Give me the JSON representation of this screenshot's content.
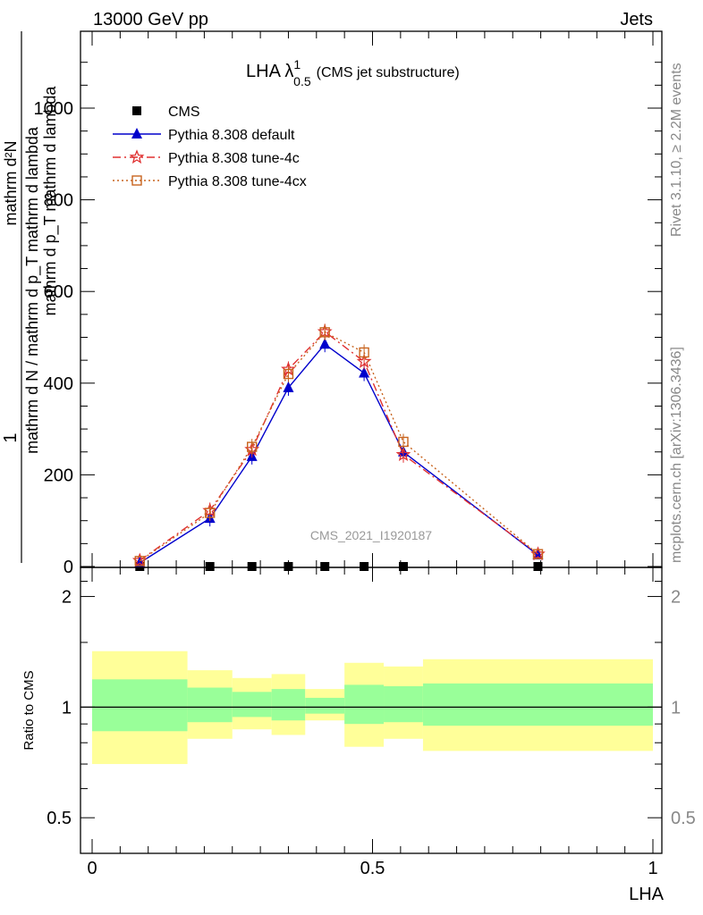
{
  "header": {
    "left": "13000 GeV pp",
    "right": "Jets"
  },
  "side_labels": {
    "top": "Rivet 3.1.10, ≥ 2.2M events",
    "bottom": "mcplots.cern.ch [arXiv:1306.3436]"
  },
  "chart_data": [
    {
      "type": "line",
      "title": "LHA λ",
      "title_sup": "1",
      "title_sub": "0.5",
      "subtitle": "(CMS jet substructure)",
      "watermark": "CMS_2021_I1920187",
      "ylabel_num": "1",
      "ylabel_den": "mathrm d N / mathrm d p_T mathrm d lambda",
      "ylabel_frac_num": "mathrm d²N",
      "ylabel_frac_den": "mathrm d p_T mathrm d lambda",
      "ylim": [
        0,
        1000
      ],
      "yticks": [
        0,
        200,
        400,
        600,
        800,
        1000
      ],
      "ytick_labels": [
        "0",
        "200",
        "400",
        "600",
        "800",
        "1000"
      ],
      "xlim": [
        0,
        1
      ],
      "legend_position": "top-left",
      "series": [
        {
          "name": "CMS",
          "color": "#000000",
          "marker": "square",
          "x": [
            0.085,
            0.21,
            0.285,
            0.35,
            0.415,
            0.485,
            0.555,
            0.795
          ],
          "y": [
            0,
            0,
            0,
            0,
            0,
            0,
            0,
            0
          ]
        },
        {
          "name": "Pythia 8.308 default",
          "color": "#0000cc",
          "marker": "triangle",
          "dash": "",
          "x": [
            0.085,
            0.21,
            0.285,
            0.35,
            0.415,
            0.485,
            0.555,
            0.795
          ],
          "y": [
            8,
            105,
            240,
            390,
            485,
            422,
            250,
            25
          ]
        },
        {
          "name": "Pythia 8.308 tune-4c",
          "color": "#e03030",
          "marker": "star",
          "dash": "9,4,2,4",
          "x": [
            0.085,
            0.21,
            0.285,
            0.35,
            0.415,
            0.485,
            0.555,
            0.795
          ],
          "y": [
            13,
            122,
            255,
            430,
            512,
            447,
            244,
            27
          ]
        },
        {
          "name": "Pythia 8.308 tune-4cx",
          "color": "#c8641e",
          "marker": "open-square",
          "dash": "2,3",
          "x": [
            0.085,
            0.21,
            0.285,
            0.35,
            0.415,
            0.485,
            0.555,
            0.795
          ],
          "y": [
            12,
            117,
            261,
            420,
            511,
            467,
            272,
            27
          ]
        }
      ]
    },
    {
      "type": "area",
      "ylabel": "Ratio to CMS",
      "xlabel": "LHA",
      "ylim": [
        0.4,
        2.4
      ],
      "log_scale_y": true,
      "yticks": [
        0.5,
        1,
        2
      ],
      "ytick_labels": [
        "0.5",
        "1",
        "2"
      ],
      "xlim": [
        0,
        1
      ],
      "xticks": [
        0,
        0.5,
        1
      ],
      "xtick_labels": [
        "0",
        "0.5",
        "1"
      ],
      "reference_line": 1,
      "inner_band_color": "#99ff99",
      "outer_band_color": "#ffff99",
      "bands": [
        {
          "x_low": 0.0,
          "x_high": 0.17,
          "inner": [
            0.86,
            1.19
          ],
          "outer": [
            0.7,
            1.42
          ]
        },
        {
          "x_low": 0.17,
          "x_high": 0.25,
          "inner": [
            0.91,
            1.13
          ],
          "outer": [
            0.82,
            1.26
          ]
        },
        {
          "x_low": 0.25,
          "x_high": 0.32,
          "inner": [
            0.94,
            1.1
          ],
          "outer": [
            0.87,
            1.2
          ]
        },
        {
          "x_low": 0.32,
          "x_high": 0.38,
          "inner": [
            0.92,
            1.12
          ],
          "outer": [
            0.84,
            1.23
          ]
        },
        {
          "x_low": 0.38,
          "x_high": 0.45,
          "inner": [
            0.96,
            1.06
          ],
          "outer": [
            0.92,
            1.12
          ]
        },
        {
          "x_low": 0.45,
          "x_high": 0.52,
          "inner": [
            0.9,
            1.15
          ],
          "outer": [
            0.78,
            1.32
          ]
        },
        {
          "x_low": 0.52,
          "x_high": 0.59,
          "inner": [
            0.91,
            1.14
          ],
          "outer": [
            0.82,
            1.29
          ]
        },
        {
          "x_low": 0.59,
          "x_high": 1.0,
          "inner": [
            0.89,
            1.16
          ],
          "outer": [
            0.76,
            1.35
          ]
        }
      ]
    }
  ]
}
